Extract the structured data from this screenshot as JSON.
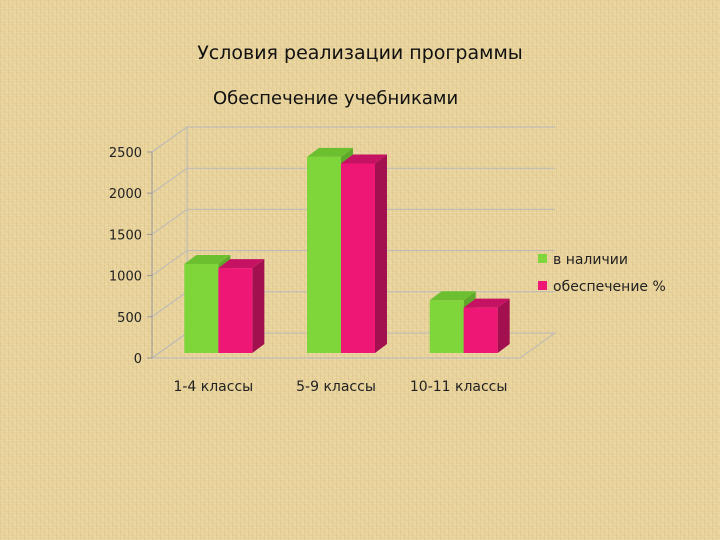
{
  "slide": {
    "title": "Условия реализации программы"
  },
  "chart_data": {
    "type": "bar",
    "title": "Обеспечение учебниками",
    "categories": [
      "1-4 классы",
      "5-9 классы",
      "10-11 классы"
    ],
    "series": [
      {
        "name": "в наличии",
        "values": [
          1080,
          2380,
          640
        ],
        "color": "#7fd63a",
        "side_color": "#5ea82a",
        "top_color": "#6cc030"
      },
      {
        "name": "обеспечение %",
        "values": [
          1030,
          2300,
          550
        ],
        "color": "#ee1776",
        "side_color": "#a3104f",
        "top_color": "#c51262"
      }
    ],
    "ylim": [
      0,
      2500
    ],
    "y_ticks": [
      0,
      500,
      1000,
      1500,
      2000,
      2500
    ],
    "grid": true,
    "legend_position": "right"
  }
}
